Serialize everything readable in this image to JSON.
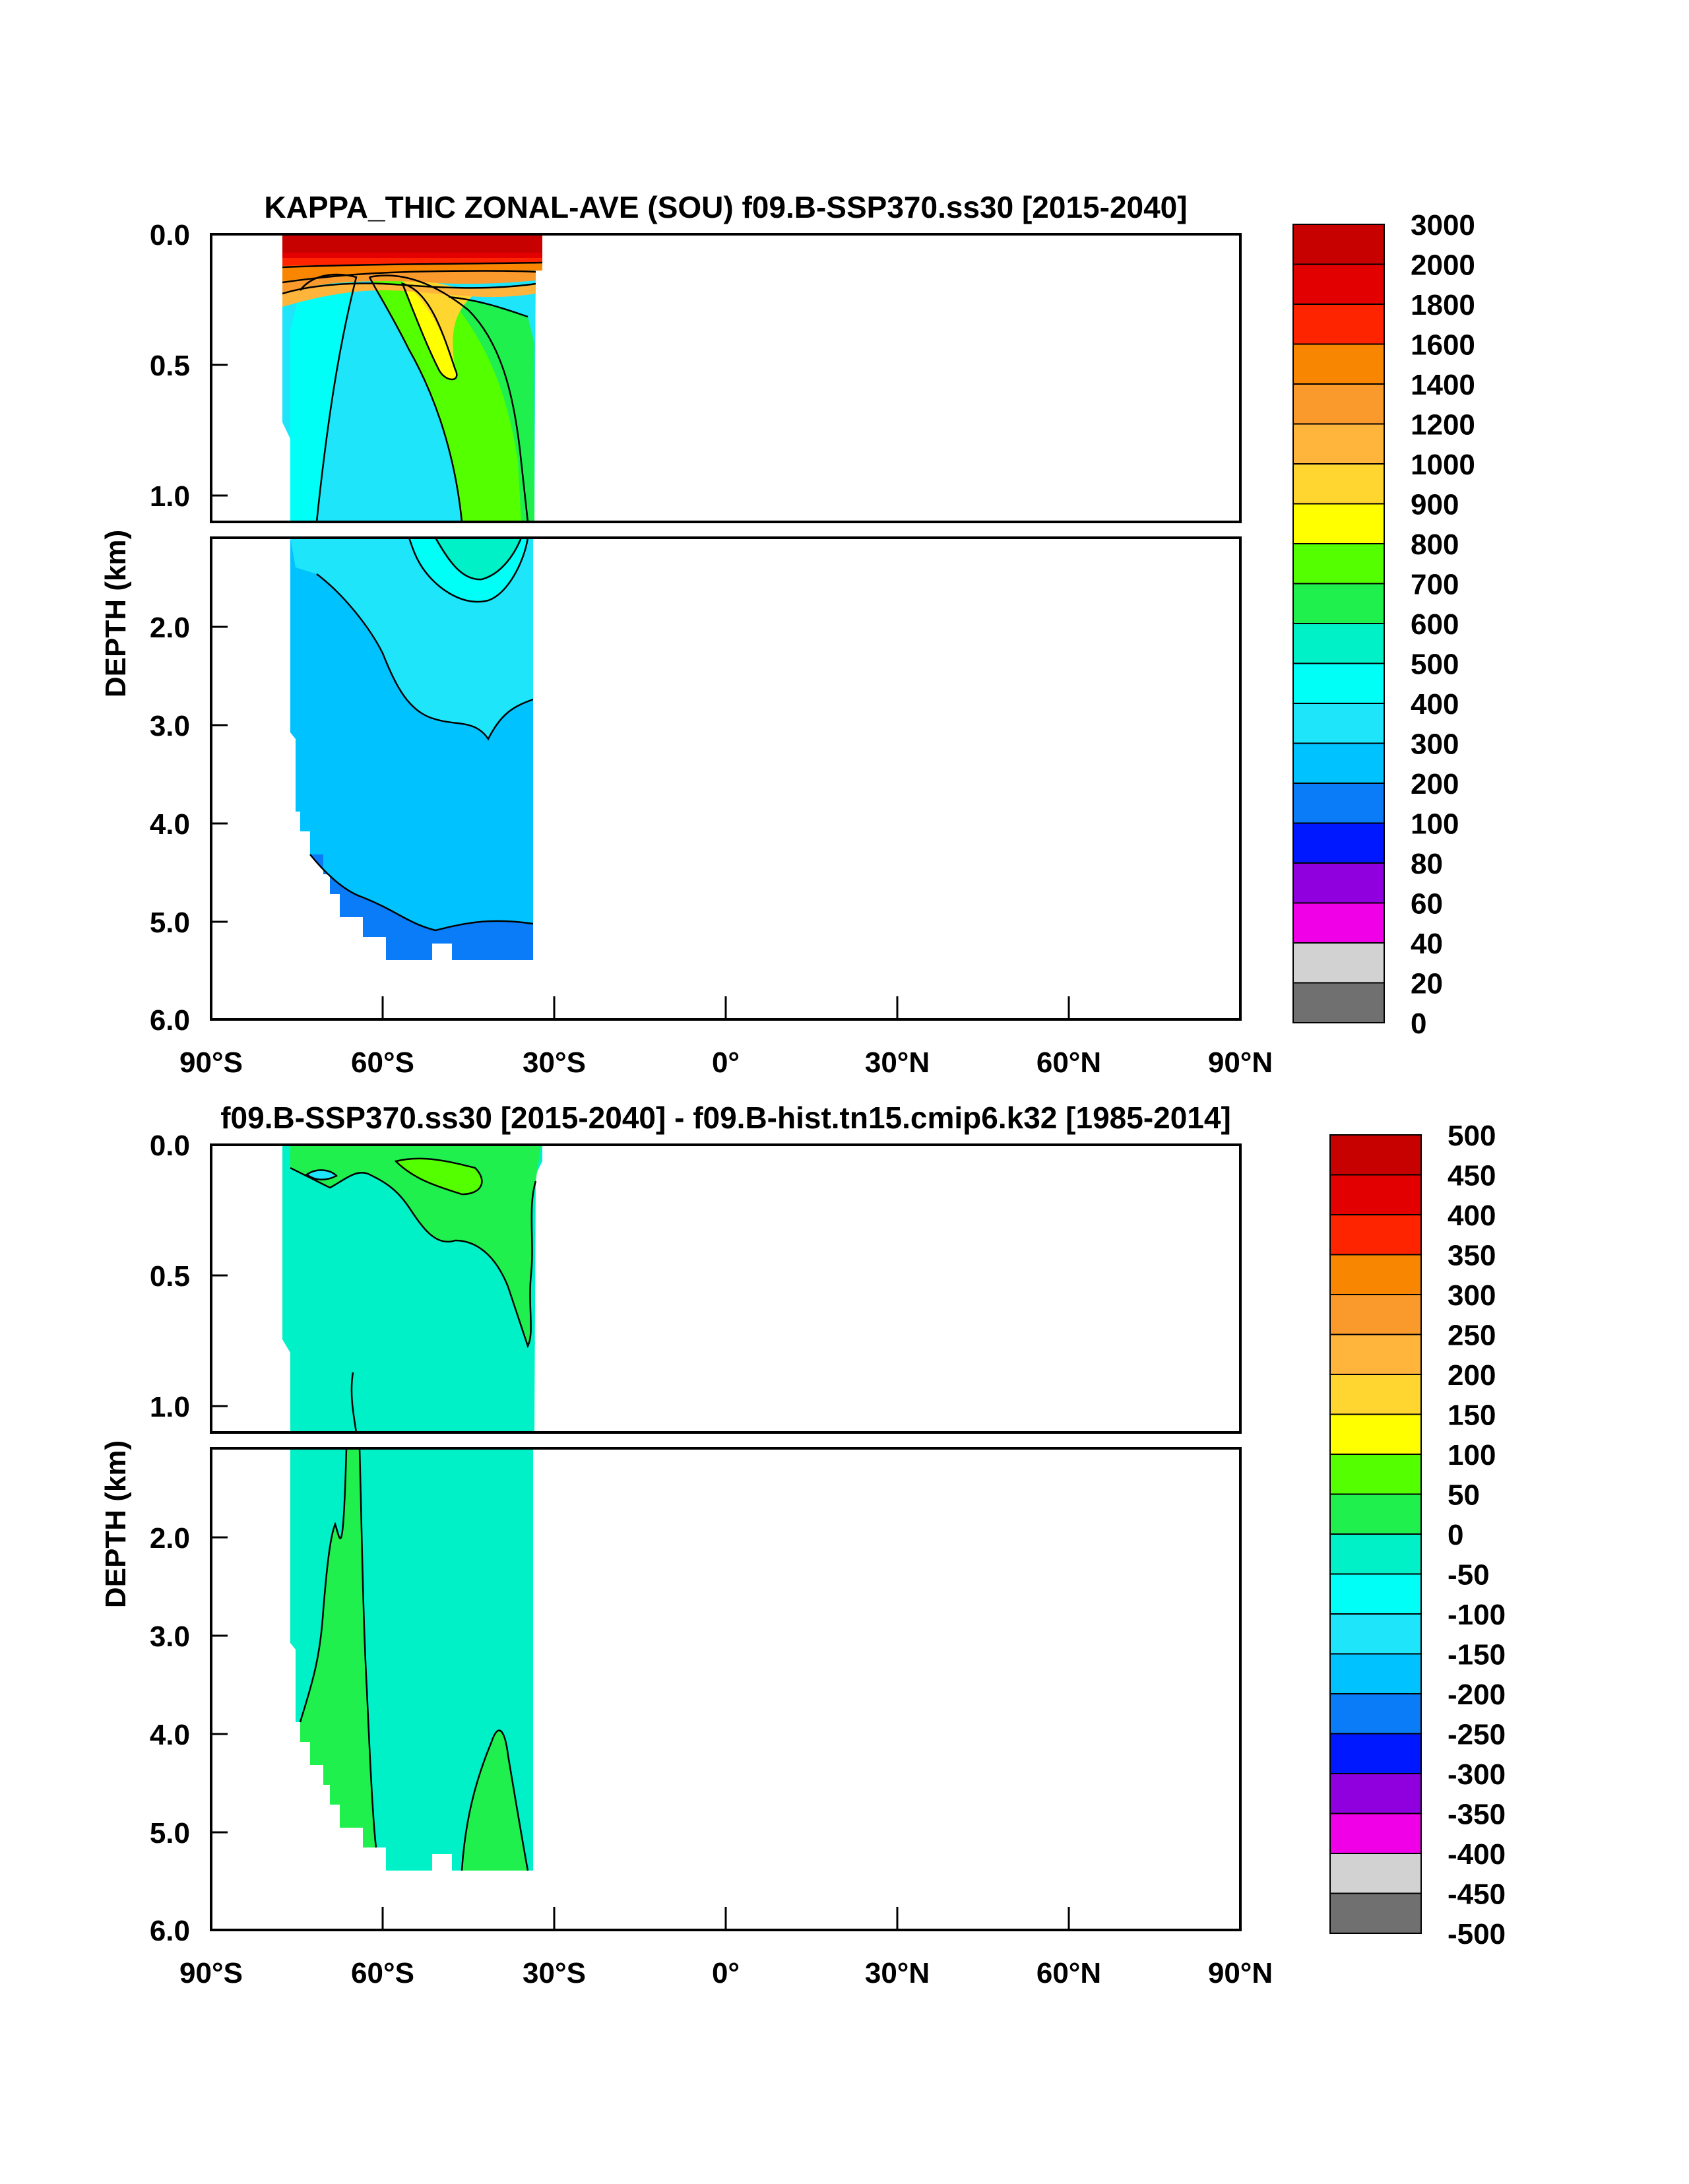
{
  "chart_data": [
    {
      "type": "heatmap",
      "title": "KAPPA_THIC ZONAL-AVE (SOU) f09.B-SSP370.ss30 [2015-2040]",
      "xlabel": "",
      "ylabel": "DEPTH (km)",
      "x_ticks": [
        "90°S",
        "60°S",
        "30°S",
        "0°",
        "30°N",
        "60°N",
        "90°N"
      ],
      "x_range": [
        -90,
        90
      ],
      "y_ticks_upper": [
        "0.0",
        "0.5",
        "1.0"
      ],
      "y_ticks_lower": [
        "2.0",
        "3.0",
        "4.0",
        "5.0",
        "6.0"
      ],
      "y_range_upper_km": [
        0,
        1.1
      ],
      "y_range_lower_km": [
        1.1,
        6.0
      ],
      "colorbar_labels": [
        "3000",
        "2000",
        "1800",
        "1600",
        "1400",
        "1200",
        "1000",
        "900",
        "800",
        "700",
        "600",
        "500",
        "400",
        "300",
        "200",
        "100",
        "80",
        "60",
        "40",
        "20",
        "0"
      ],
      "colorbar_colors": [
        "#C70000",
        "#E30000",
        "#FF2400",
        "#F88600",
        "#FB9A2C",
        "#FFB43C",
        "#FFD62F",
        "#FFFF00",
        "#54FF00",
        "#20F04E",
        "#00F0C8",
        "#00FFF7",
        "#1EE5FA",
        "#00C2FF",
        "#0A7CF7",
        "#0018FF",
        "#9000DE",
        "#F000E6",
        "#D2D2D2",
        "#707070"
      ],
      "data_extent": {
        "lat_min": -78,
        "lat_max": -34,
        "max_depth_km": 5.4
      }
    },
    {
      "type": "heatmap",
      "title": "f09.B-SSP370.ss30 [2015-2040] - f09.B-hist.tn15.cmip6.k32 [1985-2014]",
      "xlabel": "",
      "ylabel": "DEPTH (km)",
      "x_ticks": [
        "90°S",
        "60°S",
        "30°S",
        "0°",
        "30°N",
        "60°N",
        "90°N"
      ],
      "x_range": [
        -90,
        90
      ],
      "y_ticks_upper": [
        "0.0",
        "0.5",
        "1.0"
      ],
      "y_ticks_lower": [
        "2.0",
        "3.0",
        "4.0",
        "5.0",
        "6.0"
      ],
      "y_range_upper_km": [
        0,
        1.1
      ],
      "y_range_lower_km": [
        1.1,
        6.0
      ],
      "colorbar_labels": [
        "500",
        "450",
        "400",
        "350",
        "300",
        "250",
        "200",
        "150",
        "100",
        "50",
        "0",
        "-50",
        "-100",
        "-150",
        "-200",
        "-250",
        "-300",
        "-350",
        "-400",
        "-450",
        "-500"
      ],
      "colorbar_colors": [
        "#C70000",
        "#E30000",
        "#FF2400",
        "#F88600",
        "#FB9A2C",
        "#FFB43C",
        "#FFD62F",
        "#FFFF00",
        "#54FF00",
        "#20F04E",
        "#00F0C8",
        "#00FFF7",
        "#1EE5FA",
        "#00C2FF",
        "#0A7CF7",
        "#0018FF",
        "#9000DE",
        "#F000E6",
        "#D2D2D2",
        "#707070"
      ],
      "data_extent": {
        "lat_min": -78,
        "lat_max": -34,
        "max_depth_km": 5.4
      }
    }
  ]
}
